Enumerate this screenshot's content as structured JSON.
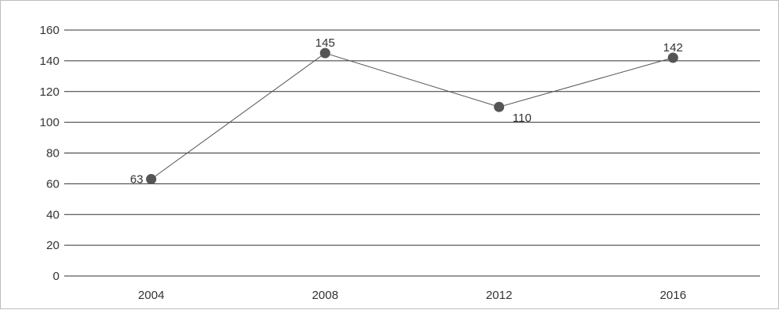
{
  "chart_data": {
    "type": "line",
    "categories": [
      "2004",
      "2008",
      "2012",
      "2016"
    ],
    "series": [
      {
        "values": [
          63,
          145,
          110,
          142
        ]
      }
    ],
    "data_labels": [
      "63",
      "145",
      "110",
      "142"
    ],
    "y_ticks": [
      "0",
      "20",
      "40",
      "60",
      "80",
      "100",
      "120",
      "140",
      "160"
    ],
    "ylim": [
      0,
      160
    ],
    "grid": "horizontal",
    "legend": "none",
    "line_color": "#555555",
    "marker_color": "#555555",
    "grid_color": "#333333"
  }
}
